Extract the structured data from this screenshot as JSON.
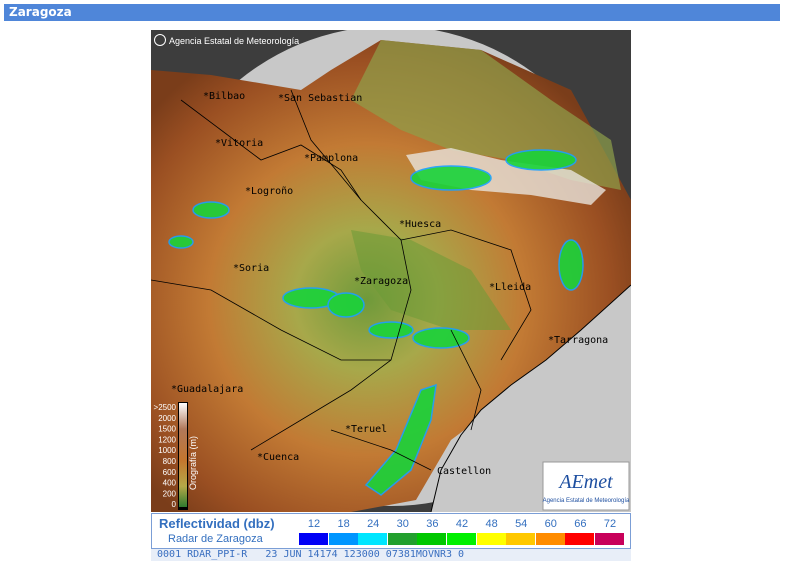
{
  "header": {
    "title": "Zaragoza"
  },
  "map": {
    "credit": "Agencia Estatal de Meteorología",
    "cities": [
      "*Bilbao",
      "*San Sebastian",
      "*Vitoria",
      "*Pamplona",
      "*Logroño",
      "*Huesca",
      "*Soria",
      "*Zaragoza",
      "*Lleida",
      "*Tarragona",
      "*Guadalajara",
      "*Teruel",
      "*Cuenca",
      "Castellon"
    ],
    "orography_labels": [
      ">2500",
      "2000",
      "1500",
      "1200",
      "1000",
      "800",
      "600",
      "400",
      "200",
      "0"
    ],
    "orography_title": "Orografía (m)",
    "logo": "AEmet",
    "logo_caption": "Agencia Estatal de Meteorología"
  },
  "legend": {
    "title": "Reflectividad (dbz)",
    "subtitle": "Radar de Zaragoza",
    "levels": [
      12,
      18,
      24,
      30,
      36,
      42,
      48,
      54,
      60,
      66,
      72
    ],
    "colors": [
      "#0000f6",
      "#0096ff",
      "#00e6ff",
      "#22a02e",
      "#00c800",
      "#00f000",
      "#ffff00",
      "#ffc800",
      "#ff8c00",
      "#ff0000",
      "#c8005a"
    ]
  },
  "status": " 0001 RDAR_PPI-R   23 JUN 14174 123000 07381MOVNR3 0"
}
